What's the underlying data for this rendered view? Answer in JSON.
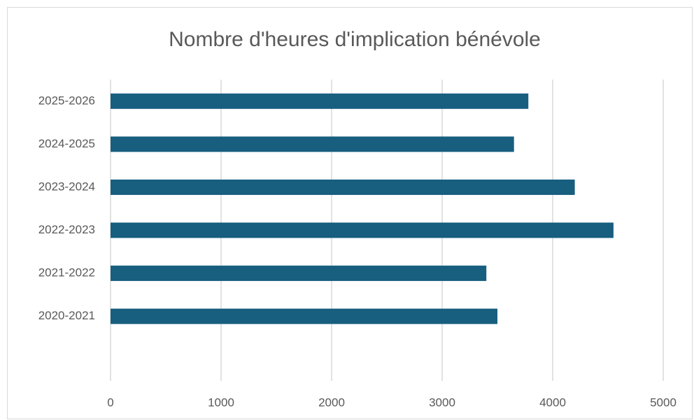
{
  "chart_data": {
    "type": "bar",
    "orientation": "horizontal",
    "title": "Nombre d'heures d'implication bénévole",
    "categories": [
      null,
      "2020-2021",
      "2021-2022",
      "2022-2023",
      "2023-2024",
      "2024-2025",
      "2025-2026"
    ],
    "values": [
      null,
      3500,
      3400,
      4550,
      4200,
      3650,
      3780
    ],
    "color": "#175e7f",
    "xlim": [
      0,
      5000
    ],
    "xticks": [
      0,
      1000,
      2000,
      3000,
      4000,
      5000
    ],
    "grid": true
  }
}
